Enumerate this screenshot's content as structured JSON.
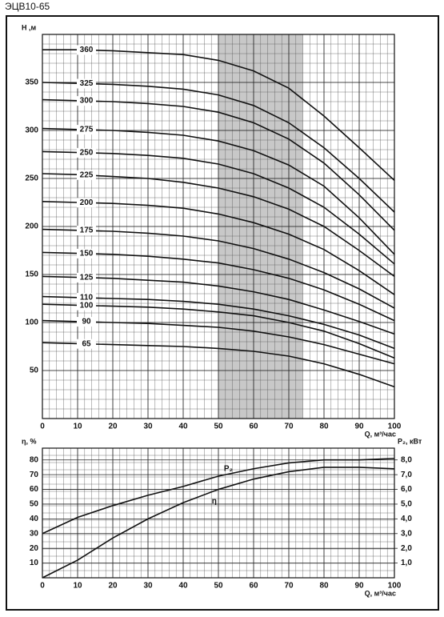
{
  "chart_data": [
    {
      "type": "line",
      "title": "ЭЦВ10-65",
      "ylabel": "H ,м",
      "xlabel": "Q, м³/час",
      "x": [
        0,
        10,
        20,
        30,
        40,
        50,
        60,
        70,
        80,
        90,
        100
      ],
      "xlim": [
        0,
        100
      ],
      "xticks": [
        0,
        10,
        20,
        30,
        40,
        50,
        60,
        70,
        80,
        90,
        100
      ],
      "ylim": [
        0,
        400
      ],
      "yticks": [
        50,
        100,
        150,
        200,
        250,
        300,
        350
      ],
      "grid": true,
      "shaded_x": [
        50,
        74
      ],
      "shade_color": "#c8c8c8",
      "series": [
        {
          "name": "360",
          "color": "#111111",
          "values": [
            384,
            384,
            383,
            381,
            379,
            373,
            362,
            344,
            315,
            282,
            248
          ]
        },
        {
          "name": "325",
          "color": "#111111",
          "values": [
            350,
            349,
            348,
            346,
            343,
            337,
            326,
            308,
            282,
            250,
            215
          ]
        },
        {
          "name": "300",
          "color": "#111111",
          "values": [
            332,
            331,
            330,
            328,
            325,
            319,
            308,
            291,
            266,
            233,
            196
          ]
        },
        {
          "name": "275",
          "color": "#111111",
          "values": [
            302,
            301,
            300,
            298,
            295,
            289,
            279,
            264,
            242,
            209,
            171
          ]
        },
        {
          "name": "250",
          "color": "#111111",
          "values": [
            278,
            277,
            276,
            274,
            271,
            265,
            255,
            240,
            220,
            192,
            161
          ]
        },
        {
          "name": "225",
          "color": "#111111",
          "values": [
            255,
            254,
            252,
            250,
            246,
            240,
            231,
            218,
            200,
            175,
            148
          ]
        },
        {
          "name": "200",
          "color": "#111111",
          "values": [
            226,
            225,
            224,
            222,
            219,
            213,
            204,
            192,
            176,
            154,
            129
          ]
        },
        {
          "name": "175",
          "color": "#111111",
          "values": [
            197,
            196,
            195,
            193,
            190,
            185,
            177,
            166,
            152,
            135,
            115
          ]
        },
        {
          "name": "150",
          "color": "#111111",
          "values": [
            173,
            172,
            171,
            169,
            166,
            162,
            155,
            146,
            134,
            119,
            102
          ]
        },
        {
          "name": "125",
          "color": "#111111",
          "values": [
            148,
            147,
            146,
            144,
            142,
            138,
            132,
            124,
            113,
            101,
            88
          ]
        },
        {
          "name": "110",
          "color": "#111111",
          "values": [
            127,
            126,
            125,
            124,
            122,
            119,
            114,
            107,
            98,
            87,
            73
          ]
        },
        {
          "name": "100",
          "color": "#111111",
          "values": [
            119,
            118,
            117,
            116,
            114,
            111,
            107,
            100,
            91,
            78,
            63
          ]
        },
        {
          "name": "90",
          "color": "#111111",
          "values": [
            102,
            101,
            100,
            99,
            97,
            95,
            91,
            85,
            77,
            67,
            57
          ]
        },
        {
          "name": "65",
          "color": "#111111",
          "values": [
            79,
            78,
            77,
            76,
            75,
            73,
            70,
            65,
            57,
            46,
            33
          ]
        }
      ]
    },
    {
      "type": "line",
      "ylabel": "η, %",
      "y2label": "P₂, кВт",
      "xlabel": "Q, м³/час",
      "x": [
        0,
        10,
        20,
        30,
        40,
        50,
        60,
        70,
        80,
        90,
        100
      ],
      "xlim": [
        0,
        100
      ],
      "xticks": [
        0,
        10,
        20,
        30,
        40,
        50,
        60,
        70,
        80,
        90,
        100
      ],
      "ylim": [
        0,
        88
      ],
      "yticks": [
        10,
        20,
        30,
        40,
        50,
        60,
        70,
        80
      ],
      "y2lim": [
        0,
        8.8
      ],
      "y2ticks": [
        {
          "value": 1,
          "label": "1,0"
        },
        {
          "value": 2,
          "label": "2,0"
        },
        {
          "value": 3,
          "label": "3,0"
        },
        {
          "value": 4,
          "label": "4,0"
        },
        {
          "value": 5,
          "label": "5,0"
        },
        {
          "value": 6,
          "label": "6,0"
        },
        {
          "value": 7,
          "label": "7,0"
        },
        {
          "value": 8,
          "label": "8,0"
        }
      ],
      "grid": true,
      "series": [
        {
          "name": "P₂",
          "color": "#111111",
          "axis": "y2",
          "values": [
            3.0,
            4.1,
            4.9,
            5.6,
            6.2,
            6.9,
            7.4,
            7.8,
            8.0,
            8.0,
            8.1
          ]
        },
        {
          "name": "η",
          "color": "#111111",
          "values": [
            0,
            12,
            27,
            40,
            51,
            60,
            67,
            72,
            75,
            75,
            74
          ]
        }
      ]
    }
  ]
}
